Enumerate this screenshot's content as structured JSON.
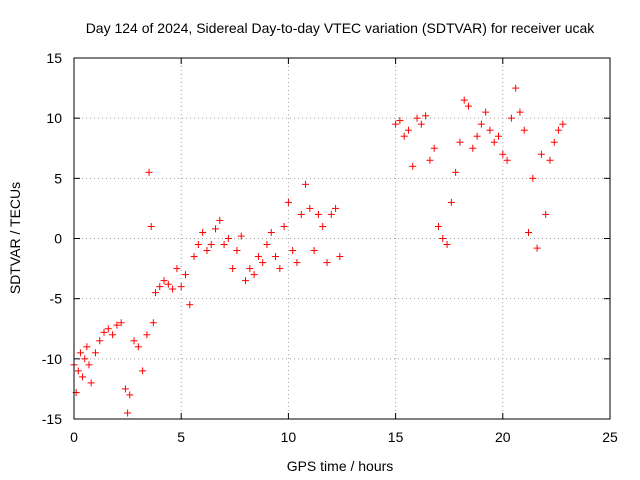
{
  "chart_data": {
    "type": "scatter",
    "title": "Day 124 of 2024, Sidereal Day-to-day VTEC variation (SDTVAR) for receiver ucak",
    "xlabel": "GPS time / hours",
    "ylabel": "SDTVAR / TECUs",
    "xlim": [
      0,
      25
    ],
    "ylim": [
      -15,
      15
    ],
    "xticks": [
      0,
      5,
      10,
      15,
      20,
      25
    ],
    "yticks": [
      -15,
      -10,
      -5,
      0,
      5,
      10,
      15
    ],
    "grid": true,
    "marker": "+",
    "color": "#ff0000",
    "series": [
      {
        "name": "SDTVAR",
        "x": [
          0.0,
          0.1,
          0.2,
          0.3,
          0.4,
          0.5,
          0.6,
          0.7,
          0.8,
          1.0,
          1.2,
          1.4,
          1.6,
          1.8,
          2.0,
          2.2,
          2.4,
          2.5,
          2.6,
          2.8,
          3.0,
          3.2,
          3.4,
          3.5,
          3.6,
          3.7,
          3.8,
          4.0,
          4.2,
          4.4,
          4.6,
          4.8,
          5.0,
          5.2,
          5.4,
          5.6,
          5.8,
          6.0,
          6.2,
          6.4,
          6.6,
          6.8,
          7.0,
          7.2,
          7.4,
          7.6,
          7.8,
          8.0,
          8.2,
          8.4,
          8.6,
          8.8,
          9.0,
          9.2,
          9.4,
          9.6,
          9.8,
          10.0,
          10.2,
          10.4,
          10.6,
          10.8,
          11.0,
          11.2,
          11.4,
          11.6,
          11.8,
          12.0,
          12.2,
          12.4,
          15.0,
          15.2,
          15.4,
          15.6,
          15.8,
          16.0,
          16.2,
          16.4,
          16.6,
          16.8,
          17.0,
          17.2,
          17.4,
          17.6,
          17.8,
          18.0,
          18.2,
          18.4,
          18.6,
          18.8,
          19.0,
          19.2,
          19.4,
          19.6,
          19.8,
          20.0,
          20.2,
          20.4,
          20.6,
          20.8,
          21.0,
          21.2,
          21.4,
          21.6,
          21.8,
          22.0,
          22.2,
          22.4,
          22.6,
          22.8
        ],
        "values": [
          -10.5,
          -12.8,
          -11.0,
          -9.5,
          -11.5,
          -10.0,
          -9.0,
          -10.5,
          -12.0,
          -9.5,
          -8.5,
          -7.8,
          -7.5,
          -8.0,
          -7.2,
          -7.0,
          -12.5,
          -14.5,
          -13.0,
          -8.5,
          -9.0,
          -11.0,
          -8.0,
          5.5,
          1.0,
          -7.0,
          -4.5,
          -4.0,
          -3.5,
          -3.8,
          -4.2,
          -2.5,
          -4.0,
          -3.0,
          -5.5,
          -1.5,
          -0.5,
          0.5,
          -1.0,
          -0.5,
          0.8,
          1.5,
          -0.5,
          0.0,
          -2.5,
          -1.0,
          0.2,
          -3.5,
          -2.5,
          -3.0,
          -1.5,
          -2.0,
          -0.5,
          0.5,
          -1.5,
          -2.5,
          1.0,
          3.0,
          -1.0,
          -2.0,
          2.0,
          4.5,
          2.5,
          -1.0,
          2.0,
          1.0,
          -2.0,
          2.0,
          2.5,
          -1.5,
          9.5,
          9.8,
          8.5,
          9.0,
          6.0,
          10.0,
          9.5,
          10.2,
          6.5,
          7.5,
          1.0,
          0.0,
          -0.5,
          3.0,
          5.5,
          8.0,
          11.5,
          11.0,
          7.5,
          8.5,
          9.5,
          10.5,
          9.0,
          8.0,
          8.5,
          7.0,
          6.5,
          10.0,
          12.5,
          10.5,
          9.0,
          0.5,
          5.0,
          -0.8,
          7.0,
          2.0,
          6.5,
          8.0,
          9.0,
          9.5
        ]
      }
    ]
  }
}
